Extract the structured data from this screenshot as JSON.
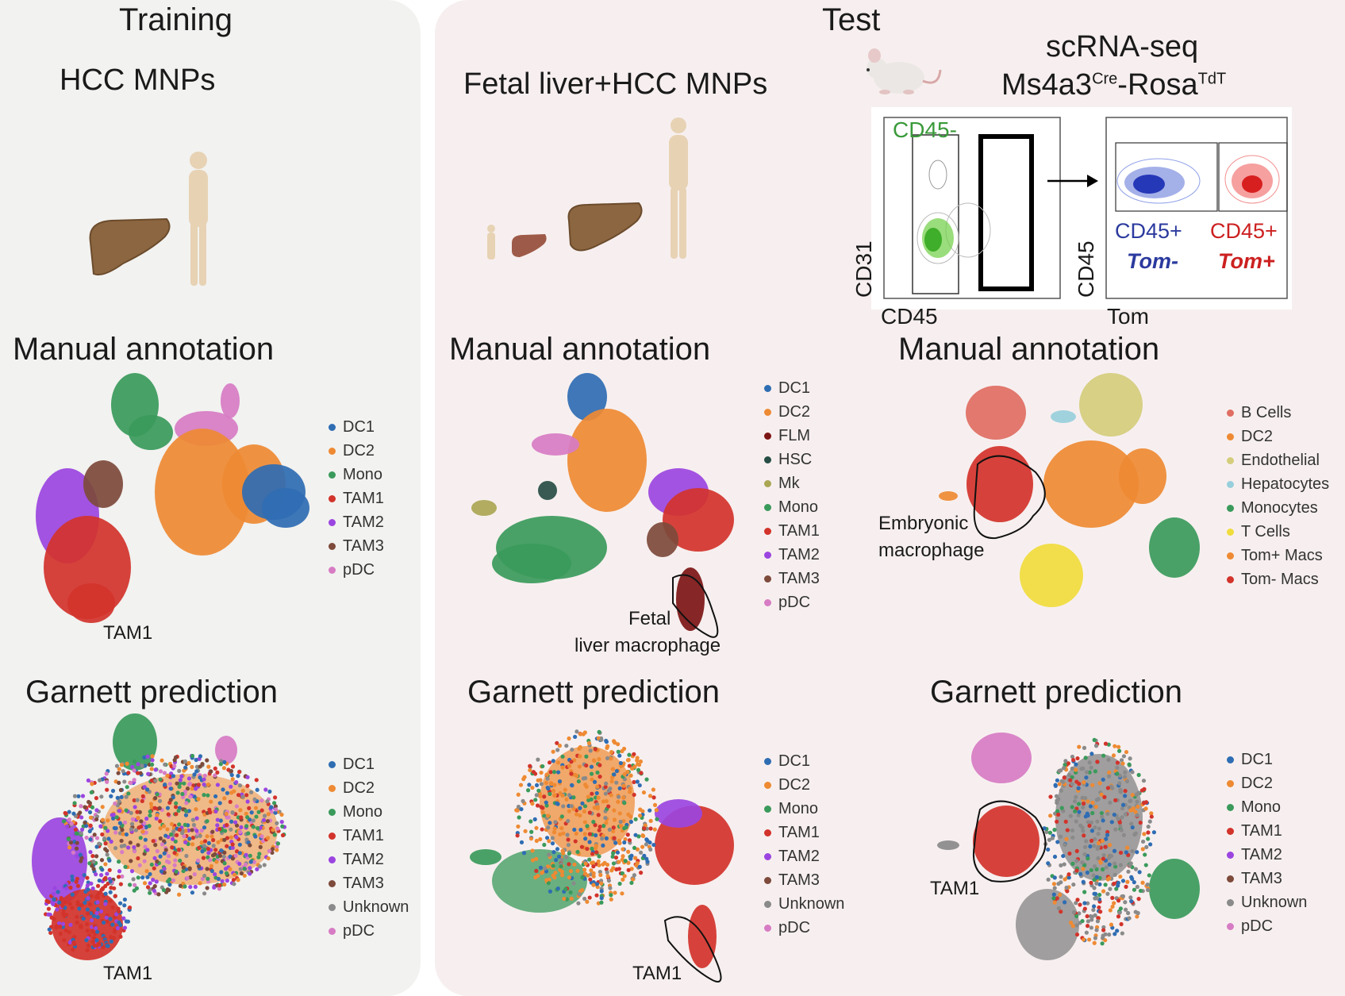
{
  "headers": {
    "training": "Training",
    "test": "Test",
    "hcc_mnps": "HCC MNPs",
    "fetal_hcc_mnps": "Fetal liver+HCC MNPs",
    "scrnaseq": "scRNA-seq",
    "mouse_model": {
      "ms": "Ms4a3",
      "cre": "Cre",
      "rosa": "-Rosa",
      "tdt": "TdT"
    }
  },
  "facs": {
    "gate1_label": "CD45-",
    "axis_y1": "CD31",
    "axis_x1": "CD45",
    "axis_y2": "CD45",
    "axis_x2": "Tom",
    "pop_blue": {
      "line1": "CD45+",
      "line2": "Tom-"
    },
    "pop_red": {
      "line1": "CD45+",
      "line2": "Tom+"
    }
  },
  "panels": {
    "train_manual": {
      "title": "Manual annotation",
      "annotation": "TAM1",
      "legend": [
        "DC1",
        "DC2",
        "Mono",
        "TAM1",
        "TAM2",
        "TAM3",
        "pDC"
      ]
    },
    "train_garnett": {
      "title": "Garnett prediction",
      "annotation": "TAM1",
      "legend": [
        "DC1",
        "DC2",
        "Mono",
        "TAM1",
        "TAM2",
        "TAM3",
        "Unknown",
        "pDC"
      ]
    },
    "fetal_manual": {
      "title": "Manual annotation",
      "annotation_line1": "Fetal",
      "annotation_line2": "liver macrophage",
      "legend": [
        "DC1",
        "DC2",
        "FLM",
        "HSC",
        "Mk",
        "Mono",
        "TAM1",
        "TAM2",
        "TAM3",
        "pDC"
      ]
    },
    "fetal_garnett": {
      "title": "Garnett prediction",
      "annotation": "TAM1",
      "legend": [
        "DC1",
        "DC2",
        "Mono",
        "TAM1",
        "TAM2",
        "TAM3",
        "Unknown",
        "pDC"
      ]
    },
    "mouse_manual": {
      "title": "Manual annotation",
      "annotation_line1": "Embryonic",
      "annotation_line2": "macrophage",
      "legend": [
        "B Cells",
        "DC2",
        "Endothelial",
        "Hepatocytes",
        "Monocytes",
        "T Cells",
        "Tom+ Macs",
        "Tom- Macs"
      ]
    },
    "mouse_garnett": {
      "title": "Garnett prediction",
      "annotation": "TAM1",
      "legend": [
        "DC1",
        "DC2",
        "Mono",
        "TAM1",
        "TAM2",
        "TAM3",
        "Unknown",
        "pDC"
      ]
    }
  },
  "colors": {
    "DC1": "#2f6db3",
    "DC2": "#ee8a33",
    "Mono": "#3a9a5b",
    "TAM1": "#d2332b",
    "TAM2": "#9b45e0",
    "TAM3": "#7d4a3b",
    "pDC": "#d77cc4",
    "Unknown": "#8a8a8a",
    "FLM": "#7d1515",
    "HSC": "#274d45",
    "Mk": "#aaa654",
    "B Cells": "#e06e63",
    "Endothelial": "#d4cd7c",
    "Hepatocytes": "#98cfdc",
    "Monocytes": "#3a9a5b",
    "T Cells": "#f0dc3c",
    "Tom+ Macs": "#ee8a33",
    "Tom- Macs": "#d2332b",
    "gate_green": "#3a9a3a",
    "facs_blue": "#2b3a9e",
    "facs_red": "#cc2020",
    "skin": "#e7d2b4",
    "liver": "#8c6640",
    "fetal_liver": "#9e5a48"
  }
}
